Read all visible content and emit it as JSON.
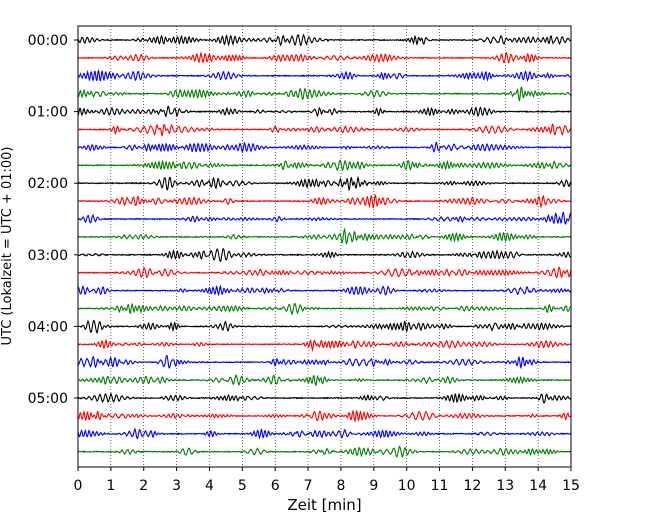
{
  "chart_data": {
    "type": "line",
    "xlabel": "Zeit  [min]",
    "ylabel": "UTC (Lokalzeit = UTC + 01:00)",
    "xlim": [
      0,
      15
    ],
    "xticks": [
      "0",
      "1",
      "2",
      "3",
      "4",
      "5",
      "6",
      "7",
      "8",
      "9",
      "10",
      "11",
      "12",
      "13",
      "14",
      "15"
    ],
    "yticks": [
      "00:00",
      "01:00",
      "02:00",
      "03:00",
      "04:00",
      "05:00"
    ],
    "trace_interval_minutes": 15,
    "trace_count": 24,
    "trace_colors": [
      "#000000",
      "#ff0000",
      "#0000ff",
      "#007f00"
    ],
    "vertical_grid": true,
    "grid_style": "dotted"
  }
}
